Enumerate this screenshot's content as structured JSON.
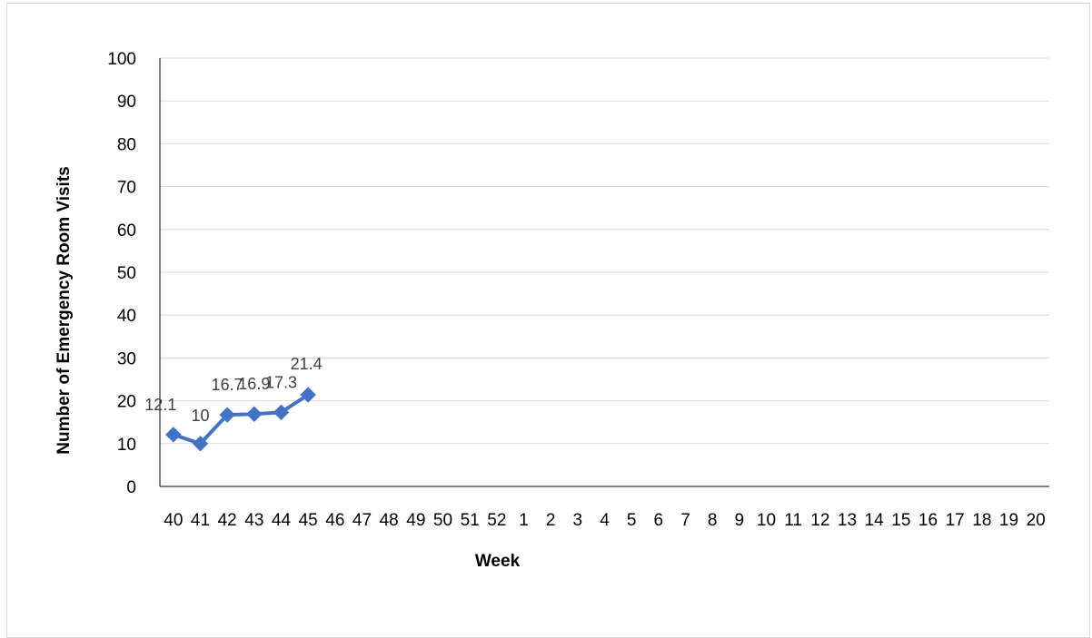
{
  "chart_data": {
    "type": "line",
    "title": "",
    "xlabel": "Week",
    "ylabel": "Number of Emergency Room Visits",
    "categories": [
      "40",
      "41",
      "42",
      "43",
      "44",
      "45",
      "46",
      "47",
      "48",
      "49",
      "50",
      "51",
      "52",
      "1",
      "2",
      "3",
      "4",
      "5",
      "6",
      "7",
      "8",
      "9",
      "10",
      "11",
      "12",
      "13",
      "14",
      "15",
      "16",
      "17",
      "18",
      "19",
      "20"
    ],
    "series": [
      {
        "values": [
          12.1,
          10,
          16.7,
          16.9,
          17.3,
          21.4,
          null,
          null,
          null,
          null,
          null,
          null,
          null,
          null,
          null,
          null,
          null,
          null,
          null,
          null,
          null,
          null,
          null,
          null,
          null,
          null,
          null,
          null,
          null,
          null,
          null,
          null,
          null
        ],
        "data_labels": [
          "12.1",
          "10",
          "16.7",
          "16.9",
          "17.3",
          "21.4"
        ]
      }
    ],
    "ylim": [
      0,
      100
    ],
    "yticks": [
      "0",
      "10",
      "20",
      "30",
      "40",
      "50",
      "60",
      "70",
      "80",
      "90",
      "100"
    ],
    "grid": true,
    "legend": "none",
    "colors": {
      "series": "#4472C4",
      "grid": "#d9d9d9",
      "axis": "#000000",
      "label": "#404040"
    }
  }
}
